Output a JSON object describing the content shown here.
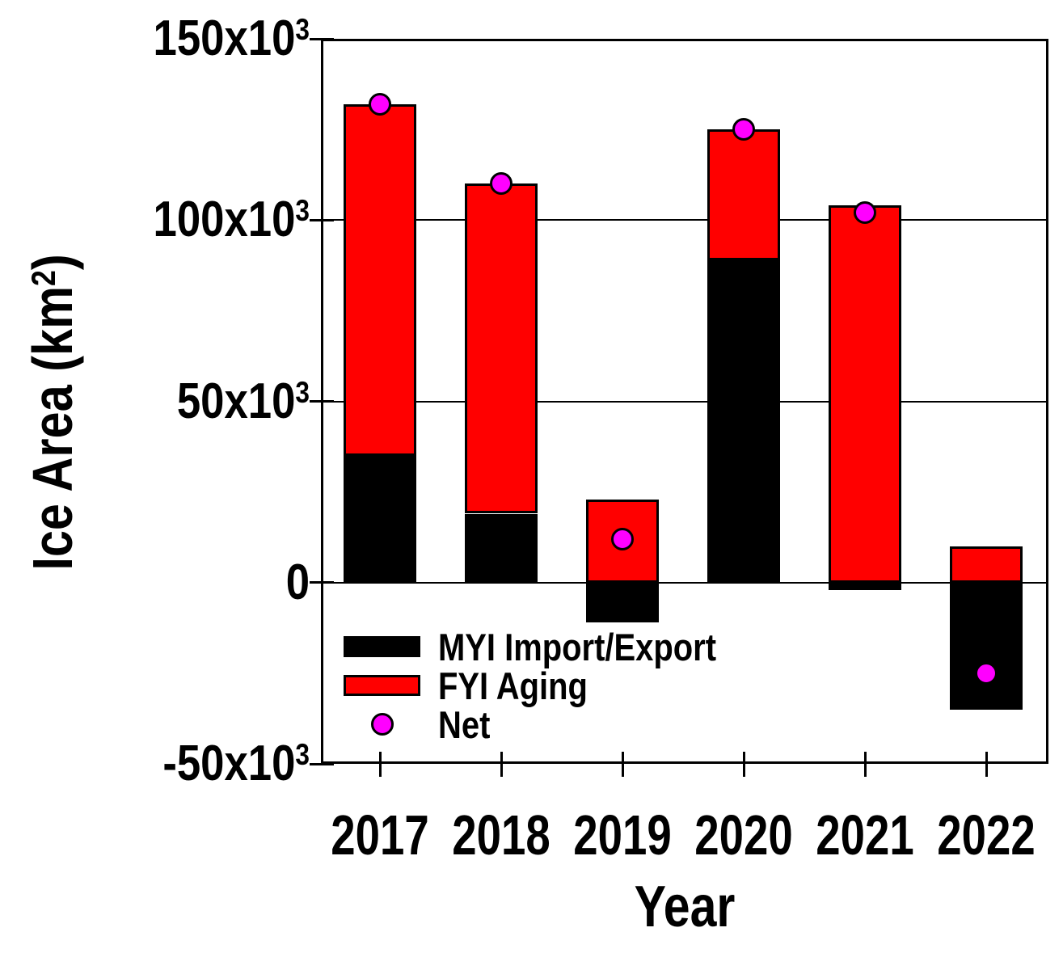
{
  "yaxis": {
    "title_main": "Ice Area (km",
    "title_sup": "2",
    "title_close": ")",
    "ticks": [
      {
        "value": 150,
        "main": "150x10",
        "sup": "3"
      },
      {
        "value": 100,
        "main": "100x10",
        "sup": "3"
      },
      {
        "value": 50,
        "main": "50x10",
        "sup": "3"
      },
      {
        "value": 0,
        "main": "0",
        "sup": ""
      },
      {
        "value": -50,
        "main": "-50x10",
        "sup": "3"
      }
    ]
  },
  "xaxis": {
    "title": "Year"
  },
  "colors": {
    "myi": "#000000",
    "fyi": "#ff0000",
    "net": "#ff00ff",
    "axis": "#000000",
    "background": "#ffffff"
  },
  "chart_data": {
    "type": "bar",
    "stacked": true,
    "title": "",
    "xlabel": "Year",
    "ylabel": "Ice Area (km^2)",
    "unit": "x10^3 km^2",
    "categories": [
      "2017",
      "2018",
      "2019",
      "2020",
      "2021",
      "2022"
    ],
    "series": [
      {
        "name": "MYI Import/Export",
        "type": "bar",
        "color": "#000000",
        "values": [
          35,
          19,
          -11,
          89,
          -2,
          -35
        ]
      },
      {
        "name": "FYI Aging",
        "type": "bar",
        "color": "#ff0000",
        "values": [
          97,
          91,
          23,
          36,
          104,
          10
        ]
      },
      {
        "name": "Net",
        "type": "scatter",
        "color": "#ff00ff",
        "values": [
          132,
          110,
          12,
          125,
          102,
          -25
        ]
      }
    ],
    "ylim": [
      -50,
      150
    ],
    "ytick_values": [
      150,
      100,
      50,
      0,
      -50
    ],
    "grid": "horizontal",
    "legend_position": "inside-bottom-left"
  }
}
